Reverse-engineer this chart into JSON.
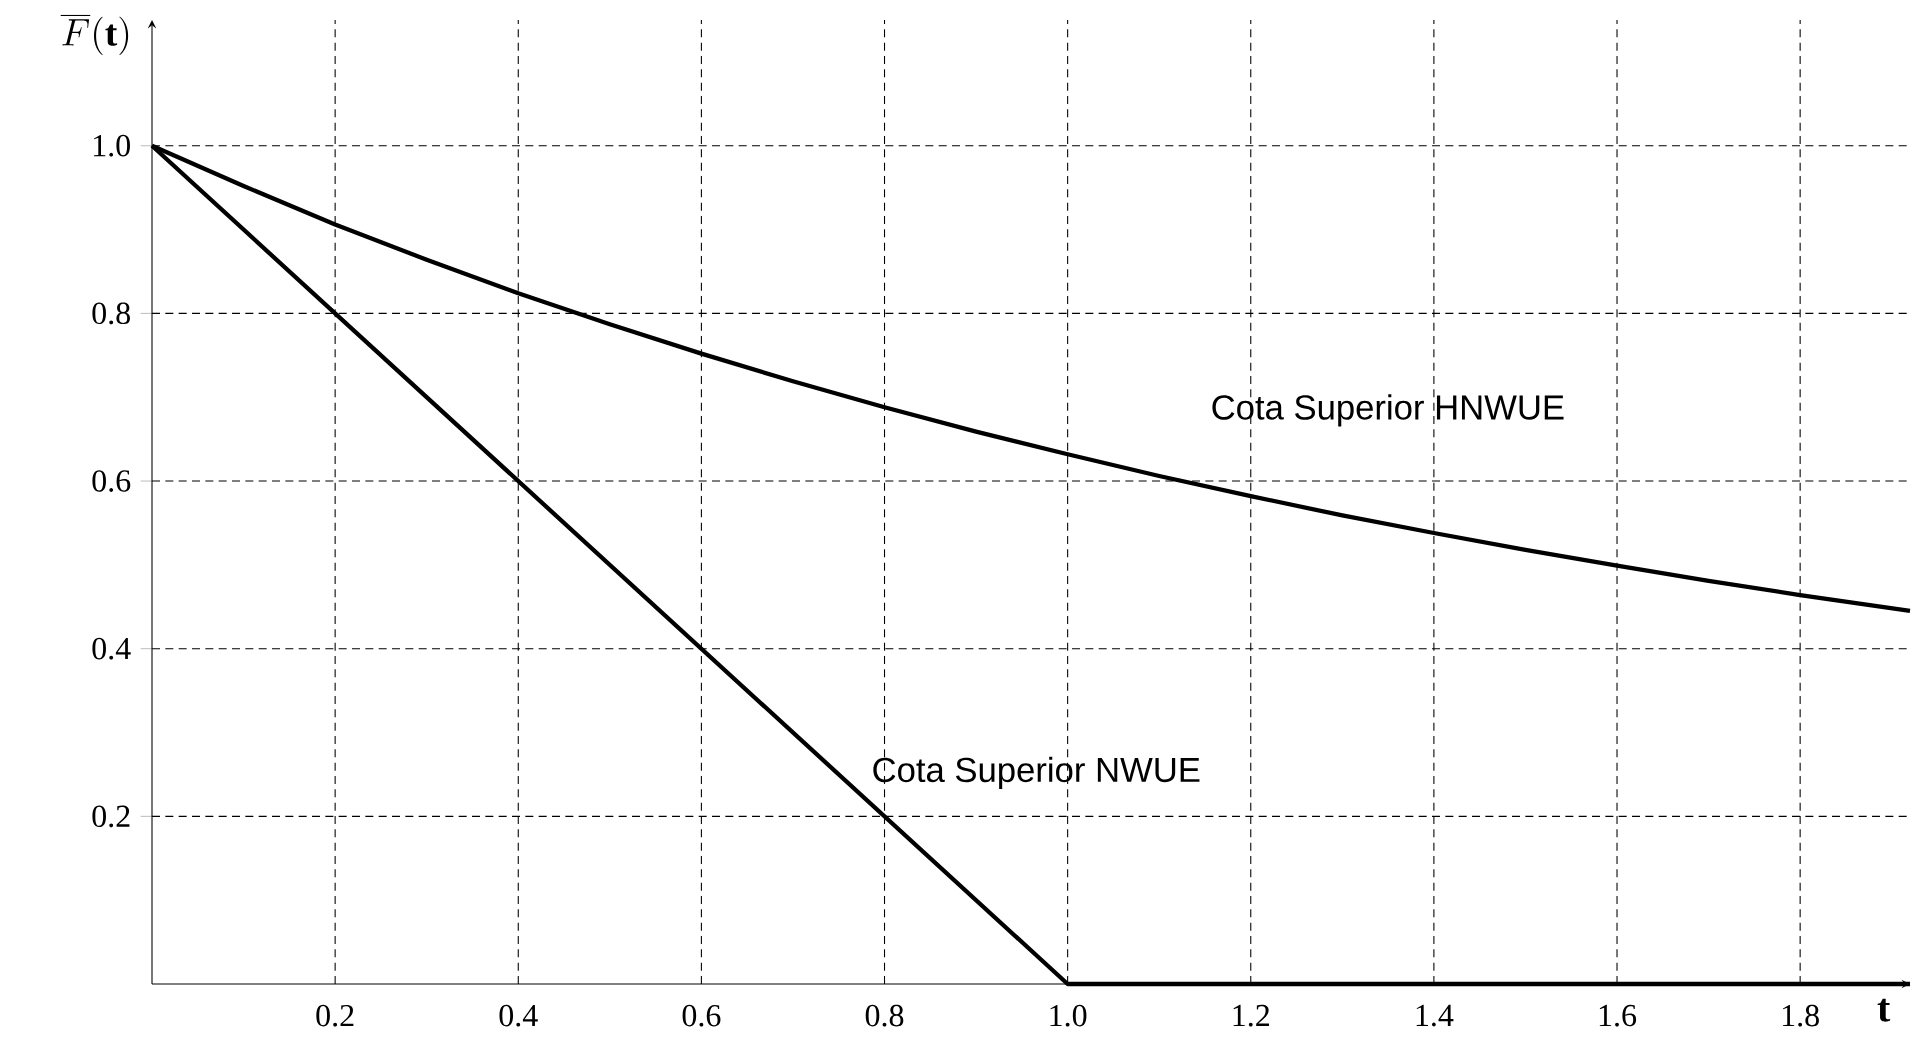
{
  "chart_data": {
    "type": "line",
    "xlabel": "t",
    "ylabel": "\\overline{F}(\\mathbf{t})",
    "xlim": [
      0,
      1.92
    ],
    "ylim": [
      0,
      1.15
    ],
    "xticks": [
      0.2,
      0.4,
      0.6,
      0.8,
      {
        "value": 1,
        "label": "1.0"
      },
      1.2,
      1.4,
      1.6,
      1.8
    ],
    "yticks": [
      0.2,
      0.4,
      0.6,
      0.8,
      {
        "value": 1,
        "label": "1.0"
      }
    ],
    "grid": true,
    "marker": "none",
    "line_style": "solid",
    "series": [
      {
        "color": "#000000",
        "x": [
          0,
          0.1,
          0.2,
          0.3,
          0.4,
          0.5,
          0.6,
          0.7,
          0.8,
          0.9,
          1.0,
          1.1,
          1.2,
          1.3,
          1.4,
          1.5,
          1.6,
          1.7,
          1.8,
          1.92
        ],
        "values": [
          1,
          0.952,
          0.906,
          0.864,
          0.824,
          0.787,
          0.752,
          0.719,
          0.688,
          0.659,
          0.632,
          0.606,
          0.582,
          0.559,
          0.538,
          0.518,
          0.499,
          0.481,
          0.464,
          0.445
        ]
      },
      {
        "color": "#000000",
        "x": [
          0,
          1,
          1.92
        ],
        "values": [
          1,
          0,
          0
        ]
      }
    ],
    "annotations": [
      "Cota Superior HNWUE",
      "Cota Superior NWUE"
    ]
  }
}
